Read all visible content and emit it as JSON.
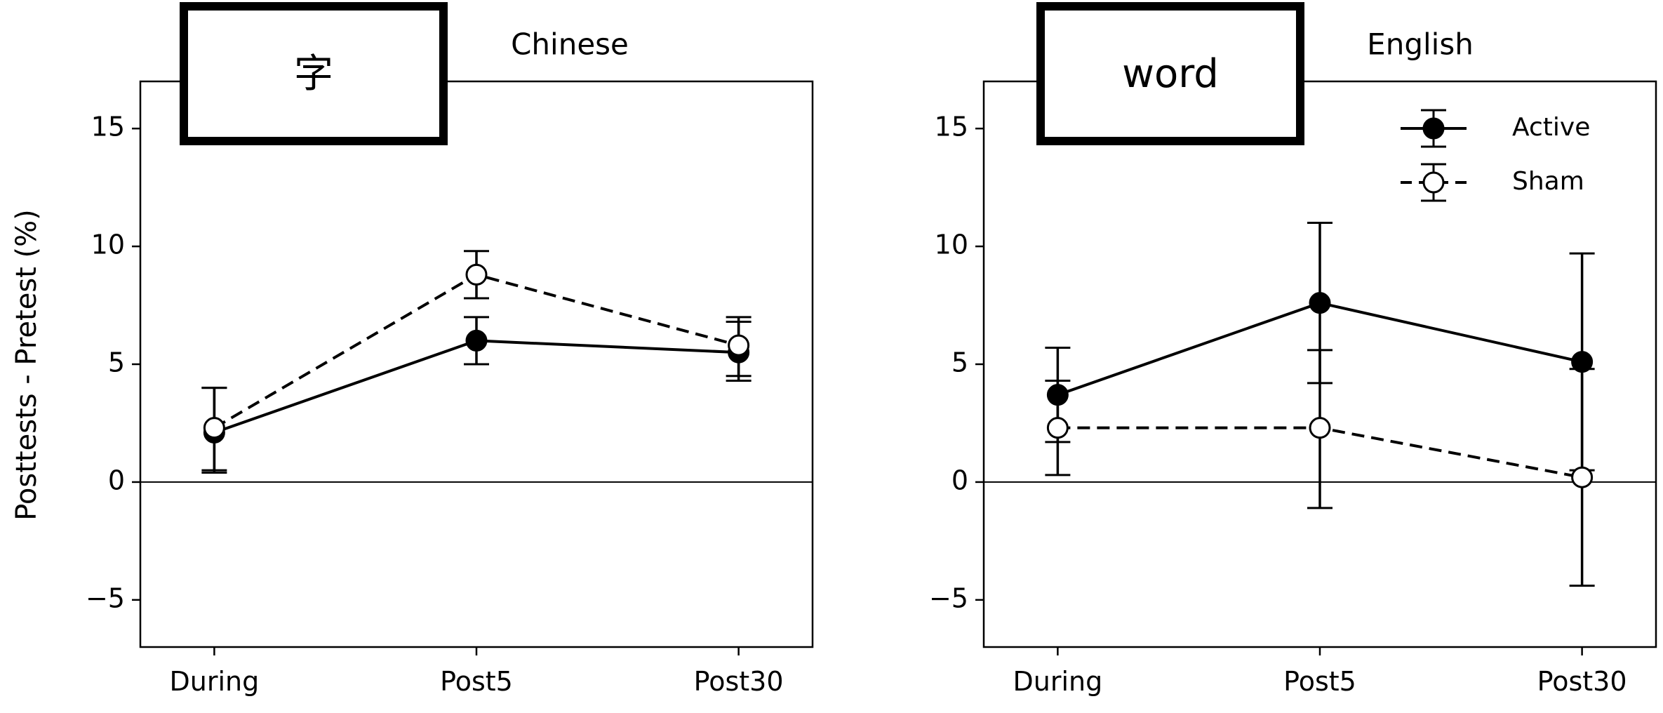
{
  "ylabel": "Posttests - Pretest (%)",
  "legend": {
    "entries": [
      "Active",
      "Sham"
    ]
  },
  "chart_data": [
    {
      "type": "line",
      "title": "Chinese",
      "box_label": "字",
      "categories": [
        "During",
        "Post5",
        "Post30"
      ],
      "ylim": [
        -7,
        17
      ],
      "yticks": [
        -5,
        0,
        5,
        10,
        15
      ],
      "ytick_labels": [
        "−5",
        "0",
        "5",
        "10",
        "15"
      ],
      "grid": false,
      "series": [
        {
          "name": "Active",
          "values": [
            2.1,
            6.0,
            5.5
          ],
          "err_low": [
            0.4,
            5.0,
            4.3
          ],
          "err_high": [
            4.0,
            7.0,
            6.8
          ],
          "marker": "filled",
          "line": "solid"
        },
        {
          "name": "Sham",
          "values": [
            2.3,
            8.8,
            5.8
          ],
          "err_low": [
            0.5,
            7.8,
            4.5
          ],
          "err_high": [
            4.0,
            9.8,
            7.0
          ],
          "marker": "open",
          "line": "dashed"
        }
      ]
    },
    {
      "type": "line",
      "title": "English",
      "box_label": "word",
      "categories": [
        "During",
        "Post5",
        "Post30"
      ],
      "ylim": [
        -7,
        17
      ],
      "yticks": [
        -5,
        0,
        5,
        10,
        15
      ],
      "ytick_labels": [
        "−5",
        "0",
        "5",
        "10",
        "15"
      ],
      "grid": false,
      "legend_position": "top-right",
      "series": [
        {
          "name": "Active",
          "values": [
            3.7,
            7.6,
            5.1
          ],
          "err_low": [
            1.7,
            4.2,
            0.5
          ],
          "err_high": [
            5.7,
            11.0,
            9.7
          ],
          "marker": "filled",
          "line": "solid"
        },
        {
          "name": "Sham",
          "values": [
            2.3,
            2.3,
            0.2
          ],
          "err_low": [
            0.3,
            -1.1,
            -4.4
          ],
          "err_high": [
            4.3,
            5.6,
            4.8
          ],
          "marker": "open",
          "line": "dashed"
        }
      ]
    }
  ]
}
